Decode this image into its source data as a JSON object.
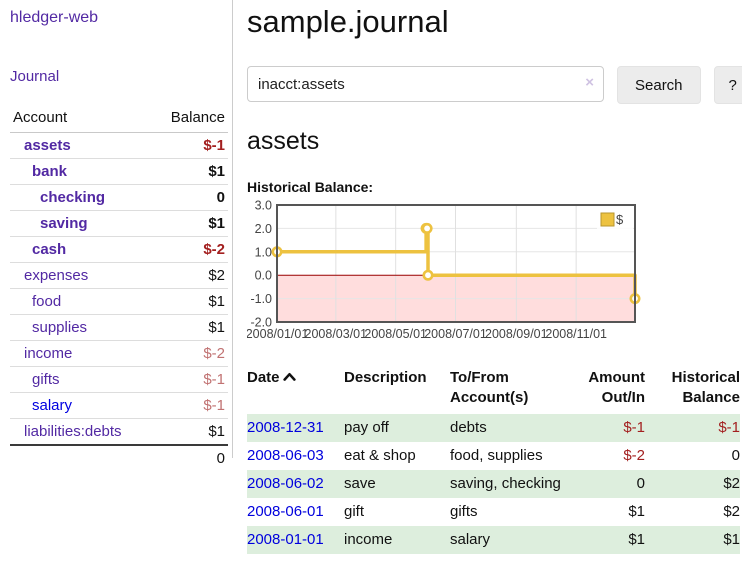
{
  "app": {
    "title": "hledger-web"
  },
  "colors": {
    "link_purple": "#5229a3",
    "link_blue": "#0000e0",
    "negative_strong": "#a31f1f",
    "negative_soft": "#c17272",
    "row_stripe_green": "#ddeedd",
    "chart_line": "#edc240",
    "chart_negative_fill": "#ffdddd",
    "chart_zero_line": "#990000"
  },
  "sidebar": {
    "journal_link": "Journal",
    "accounts": {
      "col_account": "Account",
      "col_balance": "Balance",
      "rows": [
        {
          "name": "assets",
          "depth": 1,
          "bold": true,
          "balance": "$-1",
          "balance_color": "negative-strong"
        },
        {
          "name": "bank",
          "depth": 2,
          "bold": true,
          "balance": "$1",
          "balance_color": "default"
        },
        {
          "name": "checking",
          "depth": 3,
          "bold": true,
          "balance": "0",
          "balance_color": "default"
        },
        {
          "name": "saving",
          "depth": 3,
          "bold": true,
          "balance": "$1",
          "balance_color": "default"
        },
        {
          "name": "cash",
          "depth": 2,
          "bold": true,
          "balance": "$-2",
          "balance_color": "negative-strong"
        },
        {
          "name": "expenses",
          "depth": 1,
          "bold": false,
          "balance": "$2",
          "balance_color": "default"
        },
        {
          "name": "food",
          "depth": 2,
          "bold": false,
          "balance": "$1",
          "balance_color": "default"
        },
        {
          "name": "supplies",
          "depth": 2,
          "bold": false,
          "balance": "$1",
          "balance_color": "default"
        },
        {
          "name": "income",
          "depth": 1,
          "bold": false,
          "balance": "$-2",
          "balance_color": "negative-soft"
        },
        {
          "name": "gifts",
          "depth": 2,
          "bold": false,
          "balance": "$-1",
          "balance_color": "negative-soft"
        },
        {
          "name": "salary",
          "depth": 2,
          "bold": false,
          "balance": "$-1",
          "balance_color": "negative-soft",
          "link_color": "blue"
        },
        {
          "name": "liabilities:debts",
          "depth": 1,
          "bold": false,
          "balance": "$1",
          "balance_color": "default"
        }
      ],
      "total": "0"
    }
  },
  "header": {
    "title": "sample.journal"
  },
  "search": {
    "value": "inacct:assets",
    "clear_icon": "×",
    "button_label": "Search",
    "help_label": "?"
  },
  "account_page": {
    "heading": "assets",
    "chart_title": "Historical Balance:"
  },
  "chart_data": {
    "type": "line",
    "step": true,
    "title": "Historical Balance:",
    "x": [
      "2008-01-01",
      "2008-06-01",
      "2008-06-02",
      "2008-06-03",
      "2008-12-31"
    ],
    "series": [
      {
        "name": "$",
        "values": [
          1,
          2,
          2,
          0,
          -1
        ],
        "color": "#edc240"
      }
    ],
    "xrange": [
      "2008-01-01",
      "2008-12-31"
    ],
    "ylim": [
      -2,
      3
    ],
    "yticks": [
      {
        "value": 3,
        "label": "3.0"
      },
      {
        "value": 2,
        "label": "2.0"
      },
      {
        "value": 1,
        "label": "1.0"
      },
      {
        "value": 0,
        "label": "0.0"
      },
      {
        "value": -1,
        "label": "-1.0"
      },
      {
        "value": -2,
        "label": "-2.0"
      }
    ],
    "xticks": [
      {
        "date": "2008-01-01",
        "label": "2008/01/01"
      },
      {
        "date": "2008-03-01",
        "label": "2008/03/01"
      },
      {
        "date": "2008-05-01",
        "label": "2008/05/01"
      },
      {
        "date": "2008-07-01",
        "label": "2008/07/01"
      },
      {
        "date": "2008-09-01",
        "label": "2008/09/01"
      },
      {
        "date": "2008-11-01",
        "label": "2008/11/01"
      }
    ],
    "legend": {
      "position": "top-right",
      "entries": [
        "$"
      ]
    },
    "grid": true,
    "negative_region_fill": "#ffdddd",
    "zero_line_color": "#990000"
  },
  "register": {
    "headers": [
      "Date",
      "Description",
      "To/From Account(s)",
      "Amount Out/In",
      "Historical Balance"
    ],
    "rows": [
      {
        "date": "2008-12-31",
        "description": "pay off",
        "accounts": "debts",
        "amount": "$-1",
        "amount_negative": true,
        "balance": "$-1",
        "balance_negative": true
      },
      {
        "date": "2008-06-03",
        "description": "eat & shop",
        "accounts": "food, supplies",
        "amount": "$-2",
        "amount_negative": true,
        "balance": "0",
        "balance_negative": false
      },
      {
        "date": "2008-06-02",
        "description": "save",
        "accounts": "saving, checking",
        "amount": "0",
        "amount_negative": false,
        "balance": "$2",
        "balance_negative": false
      },
      {
        "date": "2008-06-01",
        "description": "gift",
        "accounts": "gifts",
        "amount": "$1",
        "amount_negative": false,
        "balance": "$2",
        "balance_negative": false
      },
      {
        "date": "2008-01-01",
        "description": "income",
        "accounts": "salary",
        "amount": "$1",
        "amount_negative": false,
        "balance": "$1",
        "balance_negative": false
      }
    ]
  }
}
